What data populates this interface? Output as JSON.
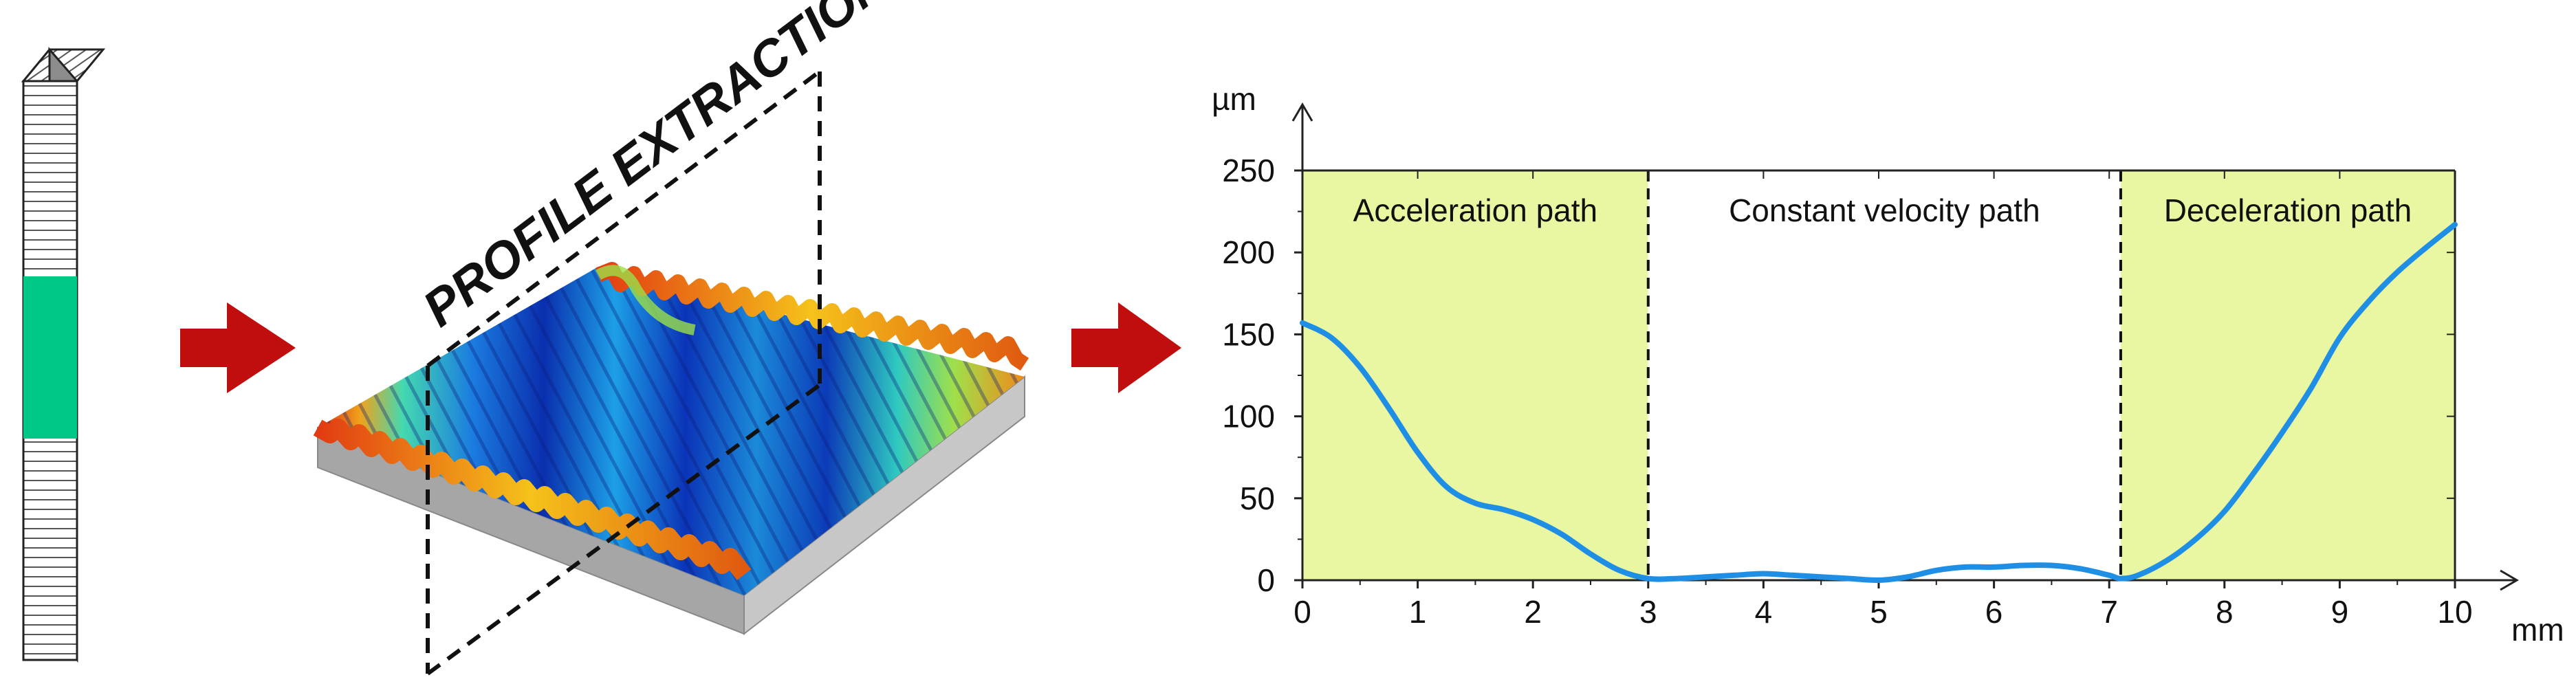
{
  "illustration": {
    "profile_title": "PROFILE EXTRACTION",
    "block_band_color": "#00c887",
    "arrow_color": "#c00d0d"
  },
  "chart_data": {
    "type": "line",
    "xlabel": "",
    "xunit": "mm",
    "ylabel": "",
    "yunit": "µm",
    "xlim": [
      0,
      10
    ],
    "ylim": [
      0,
      250
    ],
    "x_ticks": [
      "0",
      "1",
      "2",
      "3",
      "4",
      "5",
      "6",
      "7",
      "8",
      "9",
      "10"
    ],
    "y_ticks": [
      "0",
      "50",
      "100",
      "150",
      "200",
      "250"
    ],
    "grid": false,
    "regions": [
      {
        "label": "Acceleration path",
        "x_start": 0,
        "x_end": 3.0,
        "color": "#e9f7a2"
      },
      {
        "label": "Constant velocity path",
        "x_start": 3.0,
        "x_end": 7.1,
        "color": "#ffffff"
      },
      {
        "label": "Deceleration path",
        "x_start": 7.1,
        "x_end": 10,
        "color": "#e9f7a2"
      }
    ],
    "series": [
      {
        "color": "#1f8fe6",
        "x": [
          0,
          0.25,
          0.5,
          0.75,
          1.0,
          1.25,
          1.5,
          1.75,
          2.0,
          2.25,
          2.5,
          2.75,
          3.0,
          3.25,
          3.5,
          3.75,
          4.0,
          4.25,
          4.5,
          4.75,
          5.0,
          5.25,
          5.5,
          5.75,
          6.0,
          6.25,
          6.5,
          6.75,
          7.0,
          7.1,
          7.25,
          7.5,
          7.75,
          8.0,
          8.25,
          8.5,
          8.75,
          9.0,
          9.25,
          9.5,
          9.75,
          10.0
        ],
        "y": [
          157,
          148,
          130,
          105,
          78,
          57,
          47,
          43,
          37,
          28,
          16,
          6,
          1,
          1,
          2,
          3,
          4,
          3,
          2,
          1,
          0,
          2,
          6,
          8,
          8,
          9,
          9,
          7,
          3,
          1,
          3,
          12,
          25,
          42,
          65,
          90,
          117,
          148,
          170,
          188,
          203,
          217
        ]
      }
    ]
  }
}
